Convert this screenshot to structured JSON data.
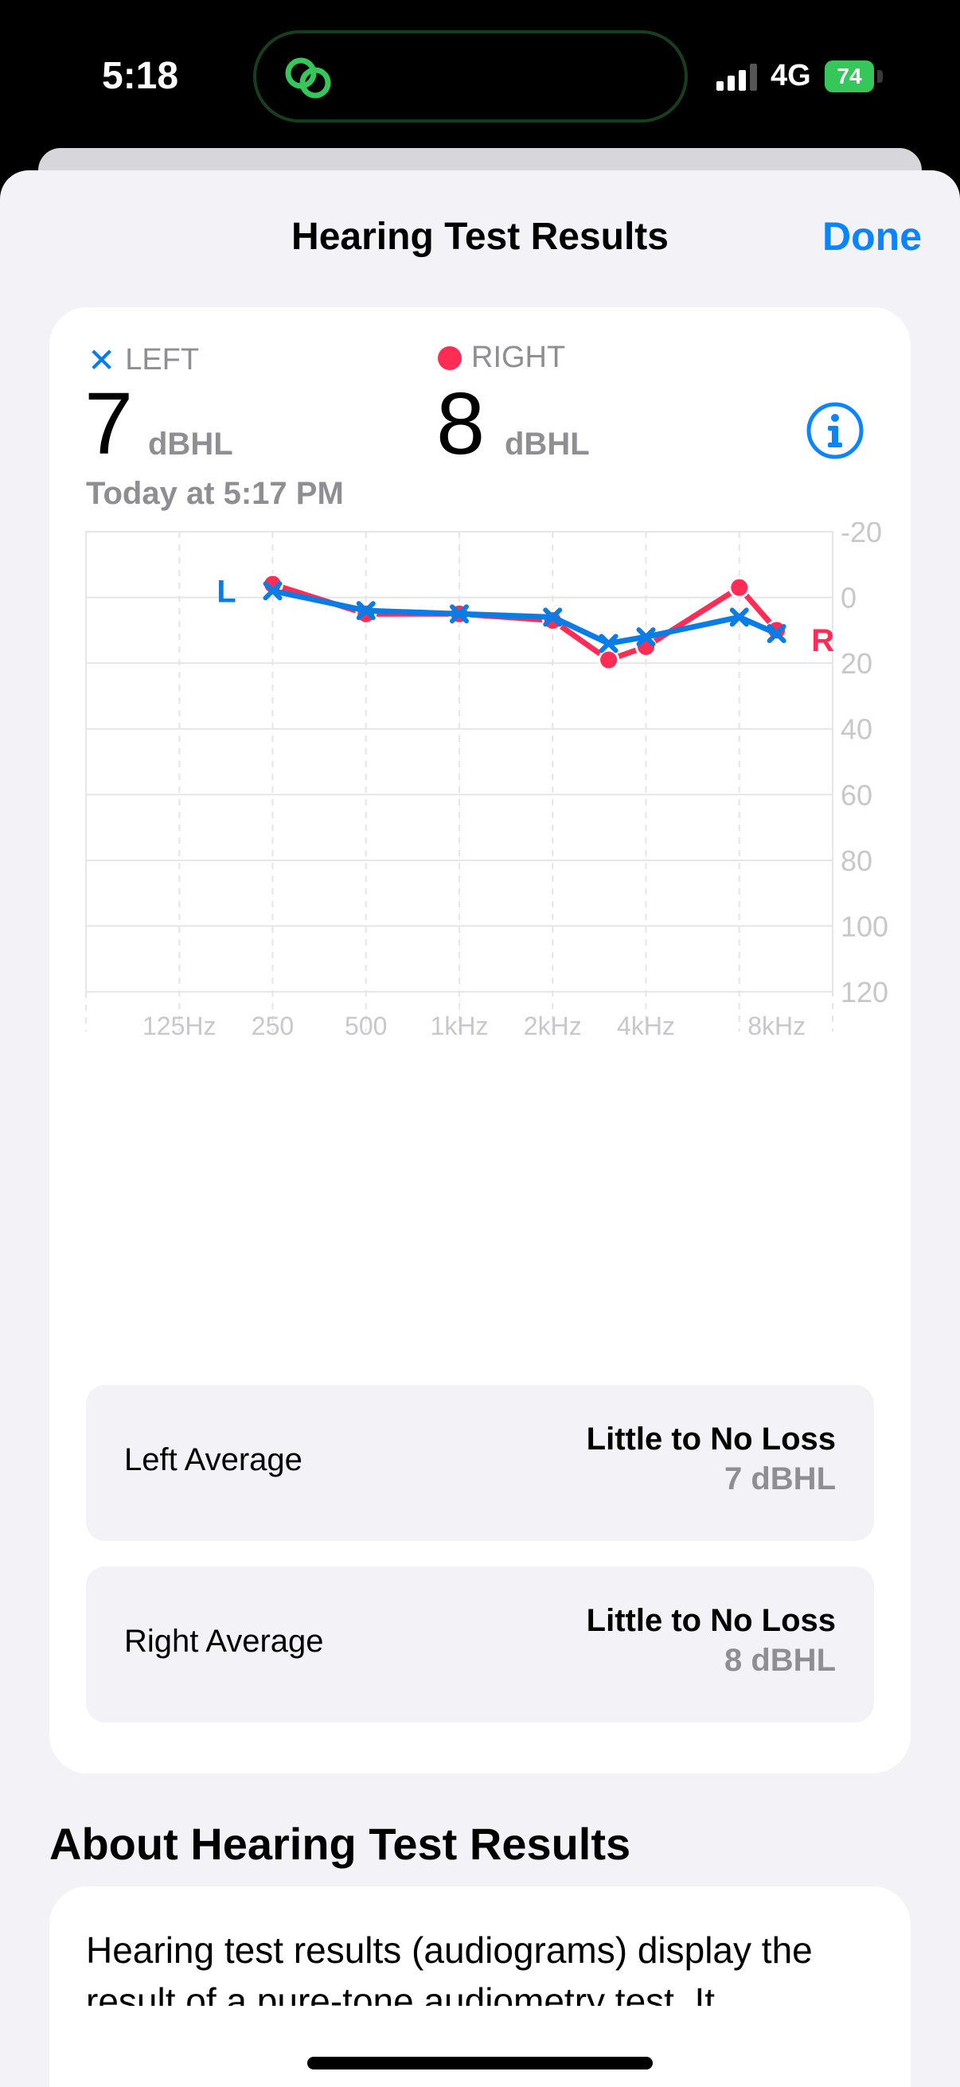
{
  "status_bar": {
    "time": "5:18",
    "network": "4G",
    "battery": "74",
    "island_icon": "link-rings-icon",
    "island_icon_color": "#35c759"
  },
  "nav": {
    "title": "Hearing Test Results",
    "done_label": "Done"
  },
  "summary": {
    "left_label": "LEFT",
    "right_label": "RIGHT",
    "left_value": "7",
    "right_value": "8",
    "unit": "dBHL",
    "timestamp": "Today at 5:17 PM",
    "info_icon": "info-circle-icon"
  },
  "chart_data": {
    "type": "line",
    "categories": [
      "125Hz",
      "250",
      "500",
      "1kHz",
      "2kHz",
      "3kHz",
      "4kHz",
      "6kHz",
      "8kHz"
    ],
    "x_tick_labels": [
      "125Hz",
      "250",
      "500",
      "1kHz",
      "2kHz",
      "4kHz",
      "8kHz"
    ],
    "y_ticks": [
      -20,
      0,
      20,
      40,
      60,
      80,
      100,
      120
    ],
    "ylim": [
      -20,
      120
    ],
    "y_inverted": true,
    "grid": true,
    "series": [
      {
        "name": "L",
        "marker": "x",
        "color": "#0a7ce6",
        "x": [
          "250",
          "500",
          "1kHz",
          "2kHz",
          "3kHz",
          "4kHz",
          "6kHz",
          "8kHz"
        ],
        "values": [
          -2,
          4,
          5,
          6,
          14,
          12,
          6,
          11
        ]
      },
      {
        "name": "R",
        "marker": "dot",
        "color": "#ff2d55",
        "x": [
          "250",
          "500",
          "1kHz",
          "2kHz",
          "3kHz",
          "4kHz",
          "6kHz",
          "8kHz"
        ],
        "values": [
          -4,
          5,
          5,
          7,
          19,
          15,
          -3,
          10
        ]
      }
    ]
  },
  "averages": {
    "left": {
      "label": "Left Average",
      "status": "Little to No Loss",
      "value": "7 dBHL"
    },
    "right": {
      "label": "Right Average",
      "status": "Little to No Loss",
      "value": "8 dBHL"
    }
  },
  "about": {
    "title": "About Hearing Test Results",
    "text": "Hearing test results (audiograms) display the result of a pure-tone audiometry test. It"
  },
  "colors": {
    "accent": "#0a84ff",
    "left_ear": "#0a7ce6",
    "right_ear": "#ff2d55"
  }
}
